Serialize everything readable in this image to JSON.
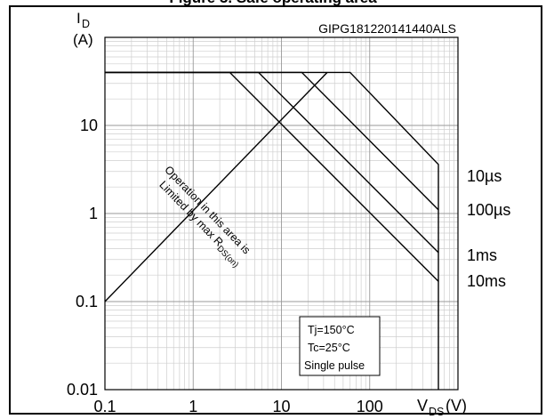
{
  "header": {
    "title_fragment": "Figure 3. Safe operating area"
  },
  "chart_data": {
    "type": "line",
    "title": "",
    "code": "GIPG181220141440ALS",
    "xscale": "log",
    "yscale": "log",
    "xlim": [
      0.1,
      1000
    ],
    "ylim": [
      0.01,
      100
    ],
    "grid": true,
    "ylabel": {
      "symbol": "I",
      "sub": "D",
      "unit": "(A)"
    },
    "xlabel": {
      "symbol": "V",
      "sub": "DS",
      "unit": "(V)"
    },
    "x_ticks": [
      {
        "v": 0.1,
        "t": "0.1"
      },
      {
        "v": 1,
        "t": "1"
      },
      {
        "v": 10,
        "t": "10"
      },
      {
        "v": 100,
        "t": "100"
      }
    ],
    "y_ticks": [
      {
        "v": 0.01,
        "t": "0.01"
      },
      {
        "v": 0.1,
        "t": "0.1"
      },
      {
        "v": 1,
        "t": "1"
      },
      {
        "v": 10,
        "t": "10"
      }
    ],
    "series": [
      {
        "name": "Operation in this area is Limited by max RDS(on)",
        "x": [
          0.1,
          33
        ],
        "y": [
          0.1,
          40
        ]
      },
      {
        "name": "10µs",
        "x": [
          0.1,
          60,
          600,
          600
        ],
        "y": [
          40,
          40,
          3.6,
          0.01
        ]
      },
      {
        "name": "100µs",
        "x": [
          0.1,
          17,
          600
        ],
        "y": [
          40,
          40,
          1.1
        ]
      },
      {
        "name": "1ms",
        "x": [
          0.1,
          5.5,
          600
        ],
        "y": [
          40,
          40,
          0.36
        ]
      },
      {
        "name": "10ms",
        "x": [
          0.1,
          2.6,
          600
        ],
        "y": [
          40,
          40,
          0.17
        ]
      }
    ],
    "curve_labels": [
      "10µs",
      "100µs",
      "1ms",
      "10ms"
    ],
    "rds_note": {
      "line1": "Operation in this area is",
      "line2": "Limited by max R",
      "sub": "DS(on)"
    },
    "conditions": [
      "Tj=150°C",
      "Tc=25°C",
      "Single pulse"
    ]
  }
}
